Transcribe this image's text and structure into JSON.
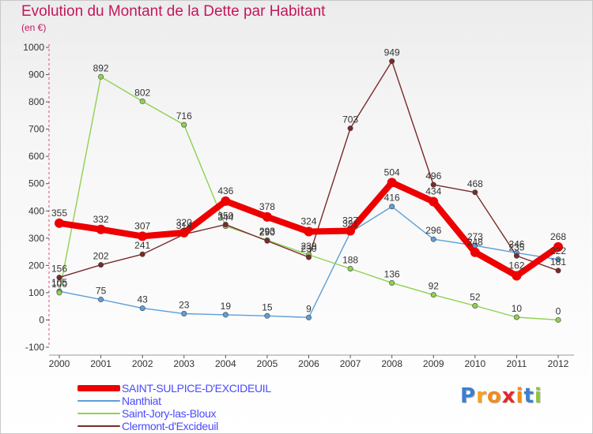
{
  "title": "Evolution du Montant de la Dette par Habitant",
  "subtitle": "(en €)",
  "logo": {
    "text": "Proxiti",
    "letter_colors": [
      "#3a7fd0",
      "#f7a21b",
      "#f28c1a",
      "#e2272d",
      "#f28c1a",
      "#3a7fd0",
      "#8cc63f"
    ]
  },
  "chart_data": {
    "type": "line",
    "x": [
      2000,
      2001,
      2002,
      2003,
      2004,
      2005,
      2006,
      2007,
      2008,
      2009,
      2010,
      2011,
      2012
    ],
    "ylim": [
      -100,
      1000
    ],
    "yticks": [
      -100,
      0,
      100,
      200,
      300,
      400,
      500,
      600,
      700,
      800,
      900,
      1000
    ],
    "grid": false,
    "legend_position": "bottom",
    "series": [
      {
        "name": "SAINT-SULPICE-D'EXCIDEUIL",
        "color": "#ee0000",
        "emphasis": true,
        "values": [
          355,
          332,
          307,
          320,
          436,
          378,
          324,
          327,
          504,
          434,
          248,
          162,
          268
        ]
      },
      {
        "name": "Nanthiat",
        "color": "#5e9ed6",
        "emphasis": false,
        "values": [
          105,
          75,
          43,
          23,
          19,
          15,
          9,
          321,
          416,
          296,
          273,
          246,
          222
        ]
      },
      {
        "name": "Saint-Jory-las-Bloux",
        "color": "#8fd14f",
        "emphasis": false,
        "values": [
          100,
          892,
          802,
          716,
          344,
          293,
          239,
          188,
          136,
          92,
          52,
          10,
          0
        ]
      },
      {
        "name": "Clermont-d'Excideuil",
        "color": "#7a2a2a",
        "emphasis": false,
        "values": [
          156,
          202,
          241,
          314,
          350,
          290,
          230,
          703,
          949,
          496,
          468,
          235,
          181
        ]
      }
    ]
  }
}
